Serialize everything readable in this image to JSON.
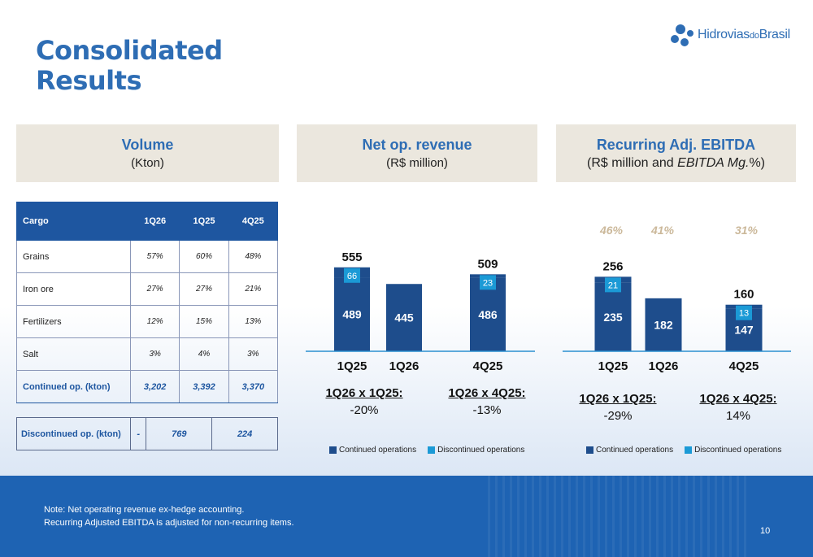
{
  "title_line1": "Consolidated",
  "title_line2": "Results",
  "logo": {
    "text": "Hidrovias",
    "small": "do",
    "text2": "Brasil"
  },
  "panels": {
    "volume": {
      "heading": "Volume",
      "sub": "(Kton)"
    },
    "revenue": {
      "heading": "Net op. revenue",
      "sub": "(R$ million)"
    },
    "ebitda": {
      "heading": "Recurring Adj. EBITDA",
      "sub_pre": "(R$ million and ",
      "sub_em": "EBITDA Mg.",
      "sub_post": "%)"
    }
  },
  "table": {
    "headers": [
      "Cargo",
      "1Q26",
      "1Q25",
      "4Q25"
    ],
    "rows": [
      [
        "Grains",
        "57%",
        "60%",
        "48%"
      ],
      [
        "Iron ore",
        "27%",
        "27%",
        "21%"
      ],
      [
        "Fertilizers",
        "12%",
        "15%",
        "13%"
      ],
      [
        "Salt",
        "3%",
        "4%",
        "3%"
      ]
    ],
    "total": [
      "Continued op. (kton)",
      "3,202",
      "3,392",
      "3,370"
    ],
    "discontinued": [
      "Discontinued op. (kton)",
      "-",
      "769",
      "224"
    ]
  },
  "colors": {
    "continued": "#1e4d8c",
    "discontinued": "#1b9ad6",
    "margin": "#cbb89a",
    "accent": "#2e6db4"
  },
  "chart_data": [
    {
      "type": "bar",
      "categories": [
        "1Q25",
        "1Q26",
        "4Q25"
      ],
      "series": [
        {
          "name": "Continued operations",
          "values": [
            489,
            445,
            486
          ]
        },
        {
          "name": "Discontinued operations",
          "values": [
            66,
            null,
            23
          ]
        }
      ],
      "totals": [
        "555",
        "",
        "509"
      ],
      "comparisons": [
        {
          "label": "1Q26 x 1Q25:",
          "value": "-20%"
        },
        {
          "label": "1Q26 x 4Q25:",
          "value": "-13%"
        }
      ]
    },
    {
      "type": "bar",
      "categories": [
        "1Q25",
        "1Q26",
        "4Q25"
      ],
      "series": [
        {
          "name": "Continued operations",
          "values": [
            235,
            182,
            147
          ]
        },
        {
          "name": "Discontinued operations",
          "values": [
            21,
            null,
            13
          ]
        }
      ],
      "totals": [
        "256",
        "",
        "160"
      ],
      "margins": [
        "46%",
        "41%",
        "31%"
      ],
      "comparisons": [
        {
          "label": "1Q26 x 1Q25:",
          "value": "-29%"
        },
        {
          "label": "1Q26 x 4Q25:",
          "value": "14%"
        }
      ]
    }
  ],
  "legend": [
    "Continued operations",
    "Discontinued operations"
  ],
  "footer": {
    "note1": "Note: Net operating revenue ex-hedge accounting.",
    "note2": "Recurring Adjusted EBITDA is adjusted for non-recurring items.",
    "page": "10"
  }
}
